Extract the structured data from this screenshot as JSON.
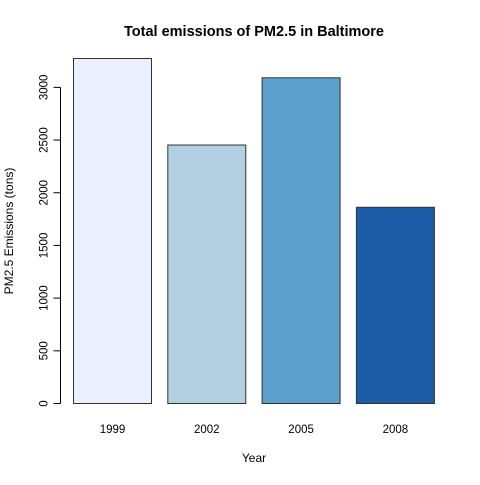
{
  "chart_data": {
    "type": "bar",
    "title": "Total emissions of PM2.5 in Baltimore",
    "xlabel": "Year",
    "ylabel": "PM2.5 Emissions (tons)",
    "categories": [
      "1999",
      "2002",
      "2005",
      "2008"
    ],
    "values": [
      3274,
      2453,
      3091,
      1862
    ],
    "colors": [
      "#EAF0FF",
      "#B3CFE2",
      "#5B9FCB",
      "#1C5BA6"
    ],
    "ylim": [
      0,
      3274
    ],
    "yticks": [
      0,
      500,
      1000,
      1500,
      2000,
      2500,
      3000
    ],
    "grid": false,
    "legend": "none"
  }
}
